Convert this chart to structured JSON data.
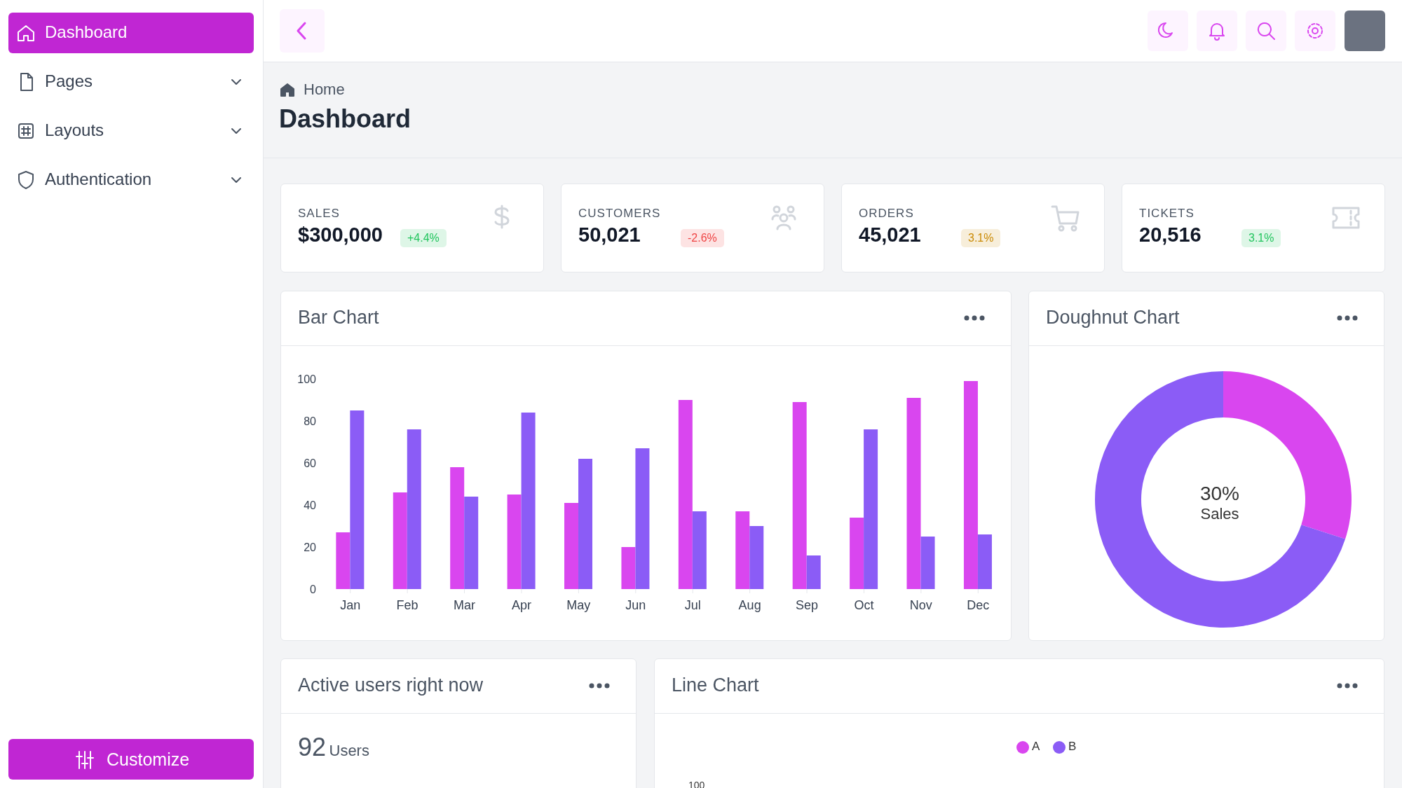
{
  "chart_data": [
    {
      "type": "other",
      "title": "Dashboard",
      "annotations": [
        "Home",
        "Dashboard",
        "Pages",
        "Layouts",
        "Authentication",
        "Customize"
      ]
    },
    {
      "type": "other",
      "annotations": [
        "SALES",
        "$300,000",
        "+4.4%",
        "CUSTOMERS",
        "50,021",
        "-2.6%",
        "ORDERS",
        "45,021",
        "3.1%",
        "TICKETS",
        "20,516",
        "3.1%"
      ],
      "colors": [
        "#22c55e",
        "#ef4444",
        "#ca8a04",
        "#22c55e"
      ]
    },
    {
      "type": "bar",
      "title": "Bar Chart",
      "categories": [
        "Jan",
        "Feb",
        "Mar",
        "Apr",
        "May",
        "Jun",
        "Jul",
        "Aug",
        "Sep",
        "Oct",
        "Nov",
        "Dec"
      ],
      "series": [
        {
          "color": "#d946ef",
          "values": [
            27,
            46,
            58,
            45,
            41,
            20,
            90,
            37,
            89,
            34,
            91,
            99
          ]
        },
        {
          "color": "#8b5cf6",
          "values": [
            85,
            76,
            44,
            84,
            62,
            67,
            37,
            30,
            16,
            76,
            25,
            26
          ]
        }
      ],
      "ylim": [
        0,
        100
      ],
      "yticks": [
        0,
        20,
        40,
        60,
        80,
        100
      ],
      "grid": false
    },
    {
      "type": "donut",
      "title": "Doughnut Chart",
      "categories": [
        null,
        null
      ],
      "values": [
        30,
        70
      ],
      "colors": [
        "#d946ef",
        "#8b5cf6"
      ],
      "annotations": [
        "30%",
        "Sales"
      ]
    },
    {
      "type": "other",
      "title": "Active users right now",
      "annotations": [
        "92",
        "Users"
      ]
    },
    {
      "type": "other",
      "title": "Line Chart",
      "annotations": [
        "A",
        "B",
        "100"
      ],
      "colors": [
        "#d946ef",
        "#8b5cf6"
      ]
    }
  ]
}
